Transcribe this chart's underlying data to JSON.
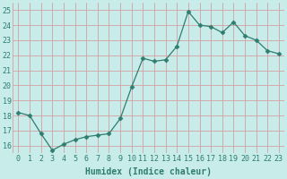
{
  "x": [
    0,
    1,
    2,
    3,
    4,
    5,
    6,
    7,
    8,
    9,
    10,
    11,
    12,
    13,
    14,
    15,
    16,
    17,
    18,
    19,
    20,
    21,
    22,
    23
  ],
  "y": [
    18.2,
    18.0,
    16.8,
    15.7,
    16.1,
    16.4,
    16.6,
    16.7,
    16.8,
    17.8,
    19.9,
    21.8,
    21.6,
    21.7,
    22.6,
    24.9,
    24.0,
    23.9,
    23.5,
    24.2,
    23.3,
    23.0,
    22.3,
    22.1
  ],
  "line_color": "#2e7d6e",
  "marker": "D",
  "marker_size": 2.5,
  "bg_color": "#c8ecea",
  "grid_color": "#d4a0a0",
  "xlabel": "Humidex (Indice chaleur)",
  "ylabel_ticks": [
    16,
    17,
    18,
    19,
    20,
    21,
    22,
    23,
    24,
    25
  ],
  "xlim": [
    -0.5,
    23.5
  ],
  "ylim": [
    15.5,
    25.5
  ],
  "xlabel_fontsize": 7,
  "tick_fontsize": 6,
  "tick_color": "#2e7d6e",
  "label_color": "#2e7d6e",
  "linewidth": 0.9
}
